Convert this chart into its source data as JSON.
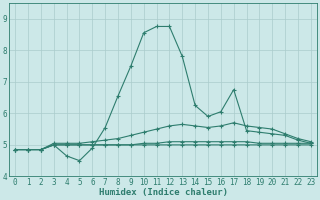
{
  "xlabel": "Humidex (Indice chaleur)",
  "x": [
    0,
    1,
    2,
    3,
    4,
    5,
    6,
    7,
    8,
    9,
    10,
    11,
    12,
    13,
    14,
    15,
    16,
    17,
    18,
    19,
    20,
    21,
    22,
    23
  ],
  "line1": [
    4.85,
    4.85,
    4.85,
    5.0,
    4.65,
    4.5,
    4.9,
    5.55,
    6.55,
    7.5,
    8.55,
    8.75,
    8.75,
    7.8,
    6.25,
    5.9,
    6.05,
    6.75,
    5.45,
    5.4,
    5.35,
    5.3,
    5.15,
    5.05
  ],
  "line2": [
    4.85,
    4.85,
    4.85,
    5.05,
    5.05,
    5.05,
    5.1,
    5.15,
    5.2,
    5.3,
    5.4,
    5.5,
    5.6,
    5.65,
    5.6,
    5.55,
    5.6,
    5.7,
    5.6,
    5.55,
    5.5,
    5.35,
    5.2,
    5.1
  ],
  "line3": [
    4.85,
    4.85,
    4.85,
    5.0,
    5.0,
    5.0,
    5.0,
    5.0,
    5.0,
    5.0,
    5.05,
    5.05,
    5.1,
    5.1,
    5.1,
    5.1,
    5.1,
    5.1,
    5.1,
    5.05,
    5.05,
    5.05,
    5.05,
    5.05
  ],
  "line4": [
    4.85,
    4.85,
    4.85,
    5.0,
    5.0,
    5.0,
    5.0,
    5.0,
    5.0,
    5.0,
    5.0,
    5.0,
    5.0,
    5.0,
    5.0,
    5.0,
    5.0,
    5.0,
    5.0,
    5.0,
    5.0,
    5.0,
    5.0,
    5.0
  ],
  "line_color": "#2e7d6e",
  "bg_color": "#cce8e8",
  "grid_color": "#aacccc",
  "ylim": [
    4.0,
    9.5
  ],
  "yticks": [
    4,
    5,
    6,
    7,
    8,
    9
  ],
  "xticks": [
    0,
    1,
    2,
    3,
    4,
    5,
    6,
    7,
    8,
    9,
    10,
    11,
    12,
    13,
    14,
    15,
    16,
    17,
    18,
    19,
    20,
    21,
    22,
    23
  ],
  "marker": "+",
  "markersize": 3,
  "linewidth": 0.8,
  "tick_fontsize": 5.5,
  "label_fontsize": 6.5
}
